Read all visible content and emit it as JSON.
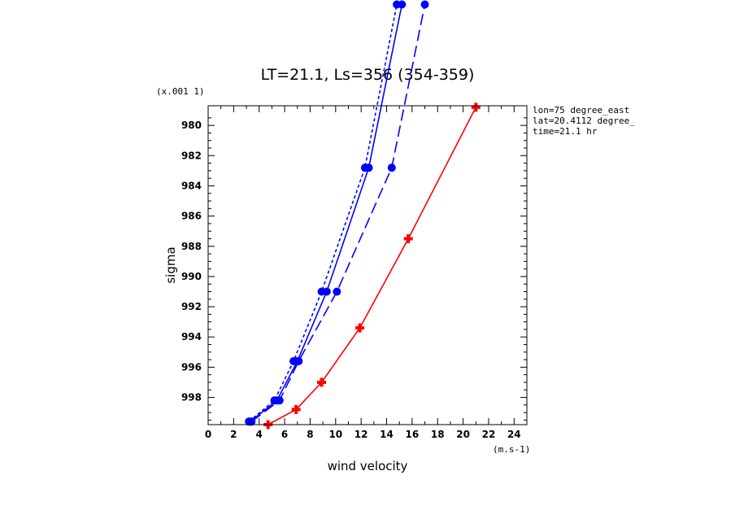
{
  "chart_data": {
    "type": "line",
    "title": "LT=21.1, Ls=356 (354-359)",
    "xlabel": "wind velocity",
    "ylabel": "sigma",
    "x_unit": "(m.s-1)",
    "y_unit": "(x.001 1)",
    "xlim": [
      0,
      25
    ],
    "ylim": [
      999.8,
      978.7
    ],
    "y_inverted": true,
    "grid": false,
    "x_ticks": [
      "0",
      "2",
      "4",
      "6",
      "8",
      "10",
      "12",
      "14",
      "16",
      "18",
      "20",
      "22",
      "24"
    ],
    "y_ticks": [
      "980",
      "982",
      "984",
      "986",
      "988",
      "990",
      "992",
      "994",
      "996",
      "998"
    ],
    "annotations": [
      "lon=75 degree_east",
      "lat=20.4112 degree_",
      "time=21.1 hr"
    ],
    "series": [
      {
        "color": "#0000ff",
        "linestyle": "solid",
        "marker": "circle",
        "x": [
          3.3,
          5.4,
          7.0,
          9.3,
          12.6,
          15.2
        ],
        "y": [
          999.6,
          998.2,
          995.6,
          991.0,
          982.8,
          972.0
        ]
      },
      {
        "color": "#0000ff",
        "linestyle": "dashed-short",
        "marker": "circle",
        "x": [
          3.2,
          5.2,
          6.7,
          8.9,
          12.3,
          14.8
        ],
        "y": [
          999.6,
          998.2,
          995.6,
          991.0,
          982.8,
          972.0
        ]
      },
      {
        "color": "#0000ff",
        "linestyle": "dashed-long",
        "marker": "circle",
        "x": [
          3.4,
          5.6,
          7.1,
          10.1,
          14.4,
          17.0
        ],
        "y": [
          999.6,
          998.2,
          995.6,
          991.0,
          982.8,
          972.0
        ]
      },
      {
        "color": "#ff0000",
        "linestyle": "solid",
        "marker": "plus",
        "x": [
          4.7,
          6.9,
          8.9,
          11.9,
          15.7,
          21.0
        ],
        "y": [
          999.8,
          998.8,
          997.0,
          993.4,
          987.5,
          978.8
        ]
      }
    ]
  }
}
